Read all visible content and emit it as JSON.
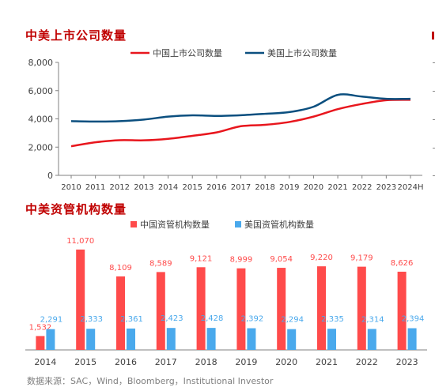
{
  "footer": "数据来源：SAC，Wind，Bloomberg，Institutional Investor",
  "colors": {
    "china": "#e8161d",
    "us": "#0b4f7f",
    "bar_china": "#ff4b4b",
    "bar_us": "#4aa9ec",
    "title": "#c00000"
  },
  "chart_data": [
    {
      "type": "line",
      "title": "中美上市公司数量",
      "categories": [
        "2010",
        "2011",
        "2012",
        "2013",
        "2014",
        "2015",
        "2016",
        "2017",
        "2018",
        "2019",
        "2020",
        "2021",
        "2022",
        "2023",
        "2024H"
      ],
      "ylim": [
        0,
        8000
      ],
      "yticks": [
        "0",
        "2,000",
        "4,000",
        "6,000",
        "8,000"
      ],
      "legend": "top-center",
      "series": [
        {
          "name": "中国上市公司数量",
          "values": [
            2060,
            2340,
            2490,
            2480,
            2590,
            2800,
            3040,
            3480,
            3580,
            3780,
            4160,
            4690,
            5060,
            5320,
            5350
          ]
        },
        {
          "name": "美国上市公司数量",
          "values": [
            3840,
            3810,
            3840,
            3950,
            4160,
            4250,
            4210,
            4260,
            4360,
            4480,
            4860,
            5700,
            5580,
            5420,
            5420
          ]
        }
      ]
    },
    {
      "type": "bar",
      "title": "中美资管机构数量",
      "categories": [
        "2014",
        "2015",
        "2016",
        "2017",
        "2018",
        "2019",
        "2020",
        "2021",
        "2022",
        "2023"
      ],
      "ylim": [
        0,
        12500
      ],
      "legend": "top-center",
      "series": [
        {
          "name": "中国资管机构数量",
          "values": [
            1532,
            11070,
            8109,
            8589,
            9121,
            8999,
            9054,
            9220,
            9179,
            8626
          ],
          "labels": [
            "1,532",
            "11,070",
            "8,109",
            "8,589",
            "9,121",
            "8,999",
            "9,054",
            "9,220",
            "9,179",
            "8,626"
          ]
        },
        {
          "name": "美国资管机构数量",
          "values": [
            2291,
            2333,
            2361,
            2423,
            2428,
            2392,
            2294,
            2335,
            2314,
            2394
          ],
          "labels": [
            "2,291",
            "2,333",
            "2,361",
            "2,423",
            "2,428",
            "2,392",
            "2,294",
            "2,335",
            "2,314",
            "2,394"
          ]
        }
      ]
    }
  ]
}
